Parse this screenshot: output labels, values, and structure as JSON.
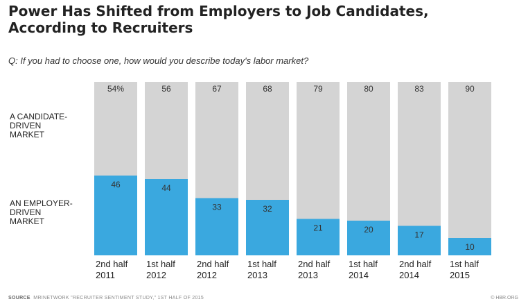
{
  "title_line1": "Power Has Shifted from Employers to Job Candidates,",
  "title_line2": "According to Recruiters",
  "subtitle": "Q: If you had to choose one, how would you describe today's labor market?",
  "row_labels": {
    "candidate": [
      "A CANDIDATE-",
      "DRIVEN",
      "MARKET"
    ],
    "employer": [
      "AN EMPLOYER-",
      "DRIVEN",
      "MARKET"
    ]
  },
  "footer": {
    "source_label": "SOURCE",
    "source_text": "MRINETWORK \"RECRUITER SENTIMENT STUDY,\" 1ST HALF OF 2015",
    "credit": "© HBR.ORG"
  },
  "colors": {
    "candidate": "#d4d4d4",
    "employer": "#3aa8df",
    "label_text": "#333333"
  },
  "chart_data": {
    "type": "bar",
    "stacked": true,
    "categories": [
      [
        "2nd half",
        "2011"
      ],
      [
        "1st half",
        "2012"
      ],
      [
        "2nd half",
        "2012"
      ],
      [
        "1st half",
        "2013"
      ],
      [
        "2nd half",
        "2013"
      ],
      [
        "1st half",
        "2014"
      ],
      [
        "2nd half",
        "2014"
      ],
      [
        "1st half",
        "2015"
      ]
    ],
    "series": [
      {
        "name": "A CANDIDATE-DRIVEN MARKET",
        "values": [
          54,
          56,
          67,
          68,
          79,
          80,
          83,
          90
        ],
        "labels": [
          "54%",
          "56",
          "67",
          "68",
          "79",
          "80",
          "83",
          "90"
        ]
      },
      {
        "name": "AN EMPLOYER-DRIVEN MARKET",
        "values": [
          46,
          44,
          33,
          32,
          21,
          20,
          17,
          10
        ],
        "labels": [
          "46",
          "44",
          "33",
          "32",
          "21",
          "20",
          "17",
          "10"
        ]
      }
    ],
    "ylim": [
      0,
      100
    ],
    "grid": false,
    "legend": "left-side row labels"
  }
}
